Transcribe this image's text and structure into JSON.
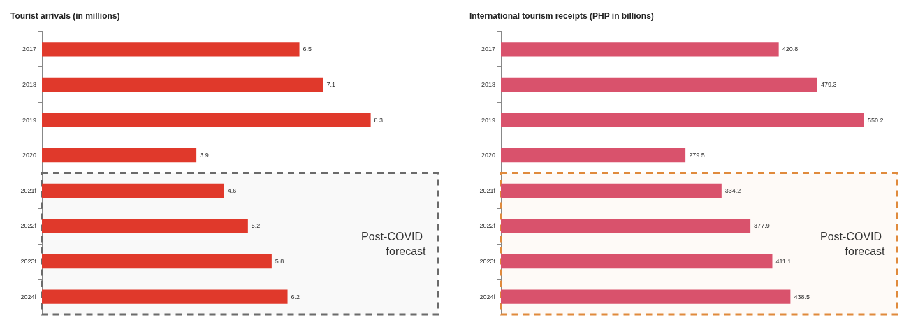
{
  "chart_data": [
    {
      "type": "bar",
      "orientation": "horizontal",
      "title": "Tourist arrivals (in millions)",
      "categories": [
        "2017",
        "2018",
        "2019",
        "2020",
        "2021f",
        "2022f",
        "2023f",
        "2024f"
      ],
      "values": [
        6.5,
        7.1,
        8.3,
        3.9,
        4.6,
        5.2,
        5.8,
        6.2
      ],
      "color": "#e0392b",
      "data_labels": true,
      "grid": false,
      "bands": [
        {
          "axis": "y",
          "from": "2021f",
          "to": "2024f",
          "label": "Post-COVID forecast",
          "color": "#6b6b6b"
        }
      ]
    },
    {
      "type": "bar",
      "orientation": "horizontal",
      "title": "International tourism receipts (PHP in billions)",
      "categories": [
        "2017",
        "2018",
        "2019",
        "2020",
        "2021f",
        "2022f",
        "2023f",
        "2024f"
      ],
      "values": [
        420.8,
        479.3,
        550.2,
        279.5,
        334.2,
        377.9,
        411.1,
        438.5
      ],
      "color": "#d9526c",
      "data_labels": true,
      "grid": false,
      "bands": [
        {
          "axis": "y",
          "from": "2021f",
          "to": "2024f",
          "label": "Post-COVID forecast",
          "color": "#e08a3c"
        }
      ]
    }
  ]
}
